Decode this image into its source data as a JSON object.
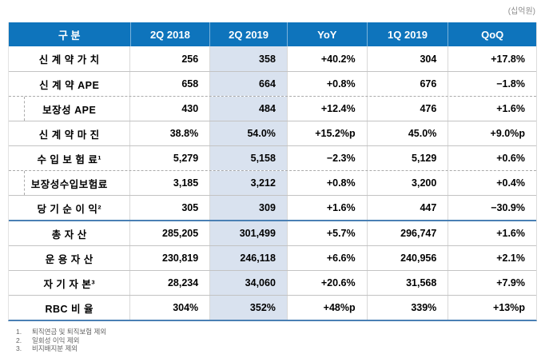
{
  "unit_label": "(십억원)",
  "colors": {
    "header_bg": "#0e74bc",
    "header_text": "#ffffff",
    "highlight_column_bg": "#d9e2ef",
    "section_divider": "#4a80b4",
    "grid_line": "#c3c3c3",
    "footnote_text": "#646464"
  },
  "chart_data": {
    "type": "table",
    "title": "",
    "unit": "(십억원)",
    "columns": [
      "구 분",
      "2Q 2018",
      "2Q 2019",
      "YoY",
      "1Q 2019",
      "QoQ"
    ],
    "highlighted_column": "2Q 2019",
    "rows": [
      {
        "label": "신 계 약 가 치",
        "indent": false,
        "values": [
          "256",
          "358",
          "+40.2%",
          "304",
          "+17.8%"
        ]
      },
      {
        "label": "신 계 약 APE",
        "indent": false,
        "values": [
          "658",
          "664",
          "+0.8%",
          "676",
          "−1.8%"
        ]
      },
      {
        "label": "보장성 APE",
        "indent": true,
        "values": [
          "430",
          "484",
          "+12.4%",
          "476",
          "+1.6%"
        ]
      },
      {
        "label": "신 계 약 마 진",
        "indent": false,
        "values": [
          "38.8%",
          "54.0%",
          "+15.2%p",
          "45.0%",
          "+9.0%p"
        ]
      },
      {
        "label": "수 입 보 험 료¹",
        "indent": false,
        "values": [
          "5,279",
          "5,158",
          "−2.3%",
          "5,129",
          "+0.6%"
        ]
      },
      {
        "label": "보장성수입보험료",
        "indent": true,
        "values": [
          "3,185",
          "3,212",
          "+0.8%",
          "3,200",
          "+0.4%"
        ]
      },
      {
        "label": "당 기 순 이 익²",
        "indent": false,
        "values": [
          "305",
          "309",
          "+1.6%",
          "447",
          "−30.9%"
        ]
      },
      {
        "label": "총 자 산",
        "indent": false,
        "section_start": true,
        "values": [
          "285,205",
          "301,499",
          "+5.7%",
          "296,747",
          "+1.6%"
        ]
      },
      {
        "label": "운 용 자 산",
        "indent": false,
        "values": [
          "230,819",
          "246,118",
          "+6.6%",
          "240,956",
          "+2.1%"
        ]
      },
      {
        "label": "자 기 자 본³",
        "indent": false,
        "values": [
          "28,234",
          "34,060",
          "+20.6%",
          "31,568",
          "+7.9%"
        ]
      },
      {
        "label": "RBC 비 율",
        "indent": false,
        "values": [
          "304%",
          "352%",
          "+48%p",
          "339%",
          "+13%p"
        ]
      }
    ],
    "footnotes": [
      {
        "num": "1.",
        "text": "퇴직연금 및 퇴직보험 제외"
      },
      {
        "num": "2.",
        "text": "일회성 이익 제외"
      },
      {
        "num": "3.",
        "text": "비지배지분 제외"
      }
    ]
  }
}
